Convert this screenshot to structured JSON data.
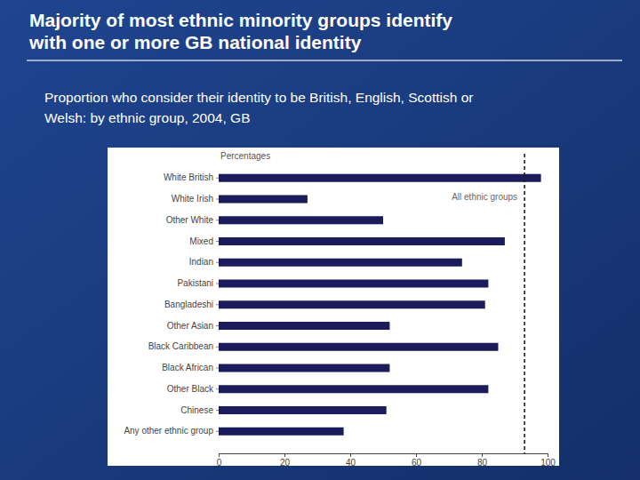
{
  "chart_data": {
    "type": "bar",
    "orientation": "horizontal",
    "title": "Majority of most ethnic minority groups identify\nwith one or more GB national identity",
    "subtitle": "Proportion who consider their identity to be British, English, Scottish or\nWelsh: by ethnic group, 2004, GB",
    "xlabel": "Percentages",
    "categories": [
      "White British",
      "White Irish",
      "Other White",
      "Mixed",
      "Indian",
      "Pakistani",
      "Bangladeshi",
      "Other Asian",
      "Black Caribbean",
      "Black African",
      "Other Black",
      "Chinese",
      "Any other ethnic group"
    ],
    "values": [
      98,
      27,
      50,
      87,
      74,
      82,
      81,
      52,
      85,
      52,
      82,
      51,
      38
    ],
    "color": "#1c1c5c",
    "xlim": [
      0,
      100
    ],
    "xticks": [
      0,
      20,
      40,
      60,
      80,
      100
    ],
    "grid": false,
    "annotations": [
      {
        "text": "All ethnic groups",
        "value": 93
      }
    ]
  }
}
